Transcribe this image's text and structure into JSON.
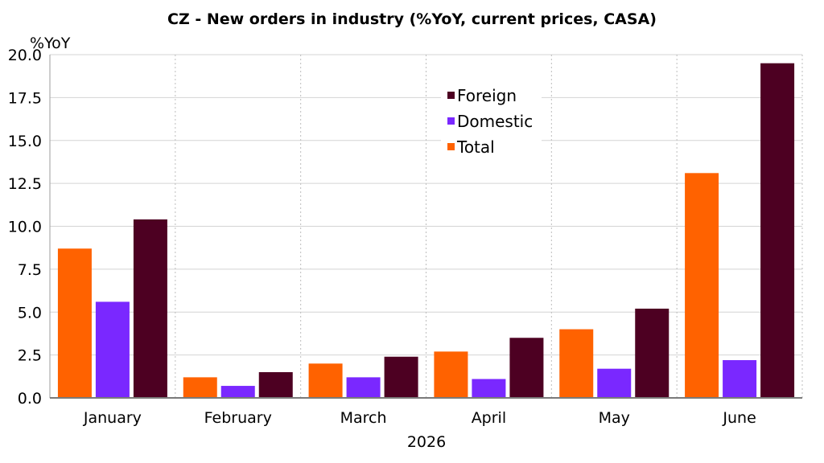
{
  "chart_data": {
    "type": "bar",
    "title": "CZ - New orders in industry (%YoY, current prices, CASA)",
    "ylabel": "%YoY",
    "xlabel": "2026",
    "categories": [
      "January",
      "February",
      "March",
      "April",
      "May",
      "June"
    ],
    "series": [
      {
        "name": "Total",
        "color": "#ff6200",
        "values": [
          8.7,
          1.2,
          2.0,
          2.7,
          4.0,
          13.1
        ]
      },
      {
        "name": "Domestic",
        "color": "#7a28ff",
        "values": [
          5.6,
          0.7,
          1.2,
          1.1,
          1.7,
          2.2
        ]
      },
      {
        "name": "Foreign",
        "color": "#4d0022",
        "values": [
          10.4,
          1.5,
          2.4,
          3.5,
          5.2,
          19.5
        ]
      }
    ],
    "legend_order": [
      "Foreign",
      "Domestic",
      "Total"
    ],
    "ylim": [
      0,
      20
    ],
    "yticks": [
      "0.0",
      "2.5",
      "5.0",
      "7.5",
      "10.0",
      "12.5",
      "15.0",
      "17.5",
      "20.0"
    ],
    "grid": true,
    "legend_position": "top-center"
  }
}
